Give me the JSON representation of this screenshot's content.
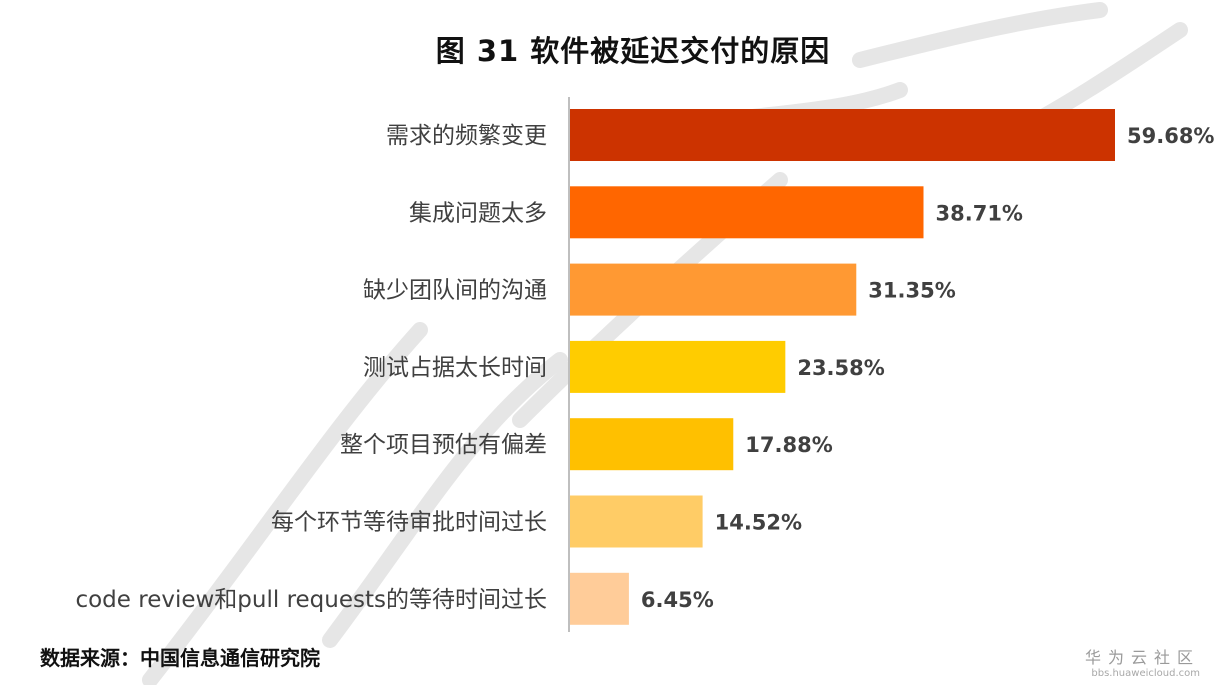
{
  "title": "图 31 软件被延迟交付的原因",
  "chart_data": {
    "type": "bar",
    "orientation": "horizontal",
    "title": "图 31 软件被延迟交付的原因",
    "categories": [
      "需求的频繁变更",
      "集成问题太多",
      "缺少团队间的沟通",
      "测试占据太长时间",
      "整个项目预估有偏差",
      "每个环节等待审批时间过长",
      "code review和pull requests的等待时间过长"
    ],
    "values": [
      59.68,
      38.71,
      31.35,
      23.58,
      17.88,
      14.52,
      6.45
    ],
    "value_labels": [
      "59.68%",
      "38.71%",
      "31.35%",
      "23.58%",
      "17.88%",
      "14.52%",
      "6.45%"
    ],
    "colors": [
      "#CC3300",
      "#FF6600",
      "#FF9933",
      "#FFCC00",
      "#FFC000",
      "#FFCC66",
      "#FFCC99"
    ],
    "xlim": [
      0,
      59.68
    ],
    "grid": false,
    "legend": "none"
  },
  "source": "数据来源：中国信息通信研究院",
  "brand": {
    "name": "华为云社区",
    "url": "bbs.huaweicloud.com"
  }
}
